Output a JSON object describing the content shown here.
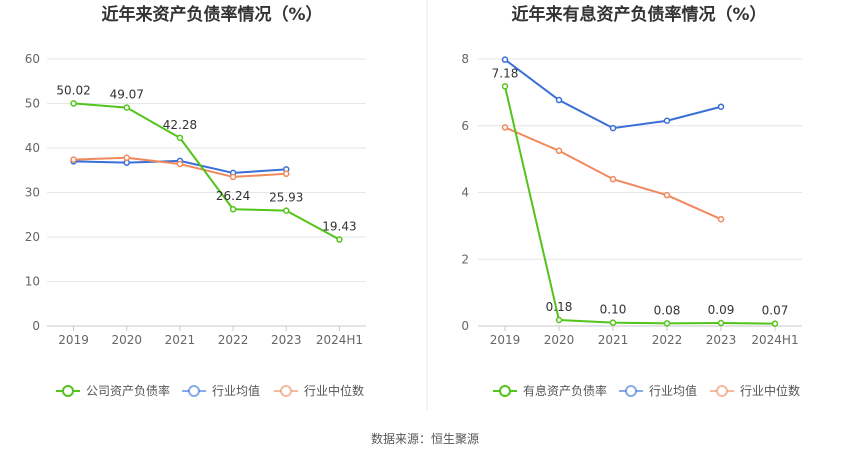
{
  "source_note": "数据来源：恒生聚源",
  "chart_data": [
    {
      "type": "line",
      "title": "近年来资产负债率情况（%）",
      "categories": [
        "2019",
        "2020",
        "2021",
        "2022",
        "2023",
        "2024H1"
      ],
      "y_ticks": [
        0,
        10,
        20,
        30,
        40,
        50,
        60
      ],
      "ylim": [
        0,
        60
      ],
      "grid": true,
      "legend_position": "bottom",
      "series": [
        {
          "name": "公司资产负债率",
          "color": "#52c41a",
          "values": [
            50.02,
            49.07,
            42.28,
            26.24,
            25.93,
            19.43
          ],
          "labels": [
            "50.02",
            "49.07",
            "42.28",
            "26.24",
            "25.93",
            "19.43"
          ]
        },
        {
          "name": "行业均值",
          "color": "#3a6fd8",
          "values": [
            37.0,
            36.7,
            37.1,
            34.4,
            35.2,
            null
          ],
          "labels": []
        },
        {
          "name": "行业中位数",
          "color": "#f08a5d",
          "values": [
            37.4,
            37.8,
            36.4,
            33.5,
            34.2,
            null
          ],
          "labels": []
        }
      ]
    },
    {
      "type": "line",
      "title": "近年来有息资产负债率情况（%）",
      "categories": [
        "2019",
        "2020",
        "2021",
        "2022",
        "2023",
        "2024H1"
      ],
      "y_ticks": [
        0,
        2,
        4,
        6,
        8
      ],
      "ylim": [
        0,
        8
      ],
      "grid": true,
      "legend_position": "bottom",
      "series": [
        {
          "name": "有息资产负债率",
          "color": "#52c41a",
          "values": [
            7.18,
            0.18,
            0.1,
            0.08,
            0.09,
            0.07
          ],
          "labels": [
            "7.18",
            "0.18",
            "0.10",
            "0.08",
            "0.09",
            "0.07"
          ]
        },
        {
          "name": "行业均值",
          "color": "#3a6fd8",
          "values": [
            7.98,
            6.77,
            5.93,
            6.15,
            6.57,
            null
          ],
          "labels": []
        },
        {
          "name": "行业中位数",
          "color": "#f08a5d",
          "values": [
            5.95,
            5.25,
            4.4,
            3.92,
            3.2,
            null
          ],
          "labels": []
        }
      ]
    }
  ]
}
